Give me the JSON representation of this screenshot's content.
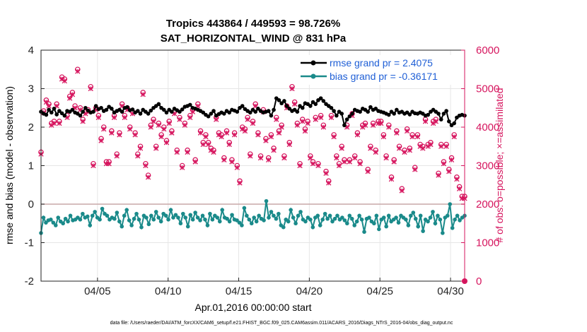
{
  "chart_data": {
    "type": "line",
    "title": "Tropics 443864 / 449593 = 98.726%",
    "subtitle": "SAT_HORIZONTAL_WIND @ 831 hPa",
    "xlabel": "Apr.01,2016 00:00:00 start",
    "ylabel_left": "rmse and bias (model - observation)",
    "ylabel_right": "# of obs: o=possible; ×=assimilated",
    "footer": "data file: /Users/raeder/DAI/ATM_forcXX/CAM6_setup/f.e21.FHIST_BGC.f09_025.CAM6assim.011/ACARS_2016/Diags_NTrS_2016-04/obs_diag_output.nc",
    "x_range": [
      1,
      31
    ],
    "x_ticks": [
      5,
      10,
      15,
      20,
      25,
      30
    ],
    "x_tick_labels": [
      "04/05",
      "04/10",
      "04/15",
      "04/20",
      "04/25",
      "04/30"
    ],
    "ylim_left": [
      -2,
      4
    ],
    "y_ticks_left": [
      -2,
      -1,
      0,
      1,
      2,
      3,
      4
    ],
    "y_tick_labels_left": [
      "-2",
      "-1",
      "0",
      "1",
      "2",
      "3",
      "4"
    ],
    "ylim_right": [
      0,
      6000
    ],
    "y_ticks_right": [
      0,
      1000,
      2000,
      3000,
      4000,
      5000,
      6000
    ],
    "y_tick_labels_right": [
      "0",
      "1000",
      "2000",
      "3000",
      "4000",
      "5000",
      "6000"
    ],
    "grid": true,
    "legend_position": "top-right",
    "colors": {
      "rmse": "#000000",
      "bias": "#1a8a8a",
      "obs": "#d6155e",
      "zero_line": "#c8a8a8",
      "legend_text": "#1f5fd6"
    },
    "series": [
      {
        "name": "rmse grand pr = 2.4075",
        "axis": "left",
        "values": [
          2.4,
          2.35,
          2.32,
          2.45,
          2.38,
          2.48,
          2.33,
          2.42,
          2.36,
          2.3,
          2.42,
          2.4,
          2.45,
          2.38,
          2.35,
          2.3,
          2.4,
          2.5,
          2.43,
          2.38,
          2.4,
          2.55,
          2.47,
          2.5,
          2.42,
          2.45,
          2.53,
          2.48,
          2.38,
          2.42,
          2.45,
          2.4,
          2.5,
          2.52,
          2.44,
          2.46,
          2.38,
          2.42,
          2.35,
          2.45,
          2.4,
          2.35,
          2.43,
          2.5,
          2.55,
          2.6,
          2.5,
          2.45,
          2.38,
          2.45,
          2.4,
          2.48,
          2.44,
          2.4,
          2.46,
          2.53,
          2.55,
          2.58,
          2.5,
          2.48,
          2.45,
          2.42,
          2.38,
          2.32,
          2.28,
          2.35,
          2.42,
          2.3,
          2.34,
          2.38,
          2.35,
          2.42,
          2.38,
          2.45,
          2.43,
          2.4,
          2.5,
          2.55,
          2.47,
          2.42,
          2.38,
          2.45,
          2.4,
          2.48,
          2.42,
          2.38,
          2.4,
          2.42,
          2.3,
          2.45,
          2.75,
          2.7,
          2.62,
          2.68,
          2.55,
          2.48,
          2.42,
          2.45,
          2.4,
          2.55,
          2.5,
          2.62,
          2.6,
          2.55,
          2.65,
          2.6,
          2.7,
          2.75,
          2.68,
          2.6,
          2.55,
          2.5,
          2.42,
          2.3,
          2.4,
          2.35,
          2.05,
          2.2,
          2.28,
          2.35,
          2.45,
          2.42,
          2.4,
          2.48,
          2.45,
          2.4,
          2.52,
          2.45,
          2.48,
          2.42,
          2.4,
          2.38,
          2.35,
          2.32,
          2.4,
          2.35,
          2.45,
          2.38,
          2.4,
          2.35,
          2.38,
          2.33,
          2.4,
          2.36,
          2.35,
          2.38,
          2.35,
          2.3,
          2.32,
          2.4,
          2.45,
          2.4,
          2.35,
          2.2,
          2.35,
          2.42,
          2.15,
          2.05,
          2.1,
          2.25,
          2.3,
          2.32,
          2.3
        ]
      },
      {
        "name": "bias grand pr = -0.36171",
        "axis": "left",
        "values": [
          -0.75,
          -0.35,
          -0.48,
          -0.42,
          -0.4,
          -0.48,
          -0.55,
          -0.35,
          -0.45,
          -0.5,
          -0.38,
          -0.45,
          -0.3,
          -0.42,
          -0.4,
          -0.35,
          -0.4,
          -0.25,
          -0.35,
          -0.32,
          -0.55,
          -0.3,
          -0.2,
          -0.35,
          -0.4,
          -0.12,
          -0.25,
          -0.3,
          -0.4,
          -0.35,
          -0.38,
          -0.22,
          -0.45,
          -0.58,
          -0.3,
          -0.15,
          -0.42,
          -0.55,
          -0.38,
          -0.25,
          -0.4,
          -0.6,
          -0.3,
          -0.35,
          -0.52,
          -0.3,
          -0.4,
          -0.2,
          -0.35,
          -0.45,
          -0.25,
          -0.3,
          -0.4,
          -0.15,
          -0.35,
          -0.28,
          -0.35,
          -0.5,
          -0.25,
          -0.35,
          -0.58,
          -0.28,
          -0.4,
          -0.22,
          -0.35,
          -0.42,
          -0.3,
          -0.4,
          -0.55,
          -0.25,
          -0.4,
          -0.3,
          -0.35,
          -0.45,
          -0.15,
          -0.35,
          -0.38,
          -0.45,
          -0.28,
          -0.4,
          -0.42,
          -0.48,
          -0.55,
          -0.1,
          -0.3,
          -0.4,
          -0.5,
          -0.35,
          -0.45,
          -0.3,
          -0.38,
          -0.42,
          0.08,
          -0.35,
          -0.2,
          -0.3,
          -0.38,
          -0.25,
          -0.55,
          -0.6,
          -0.4,
          -0.45,
          -0.15,
          -0.35,
          -0.5,
          -0.3,
          -0.2,
          -0.4,
          -0.45,
          -0.35,
          -0.4,
          -0.6,
          -0.35,
          -0.3,
          -0.55,
          -0.4,
          -0.25,
          -0.38,
          -0.3,
          -0.45,
          -0.38,
          -0.3,
          -0.4,
          -0.35,
          -0.42,
          -0.5,
          -0.3,
          -0.38,
          -0.55,
          -0.45,
          -0.3,
          -0.4,
          -0.72,
          -0.38,
          -0.35,
          -0.45,
          -0.5,
          -0.3,
          -0.65,
          -0.4,
          -0.35,
          -0.58,
          -0.3,
          -0.45,
          -0.4,
          -0.35,
          -0.48,
          -0.3,
          -0.35,
          -0.4,
          -0.55,
          -0.3,
          -0.22,
          -0.38,
          -0.58,
          -0.3,
          -0.7,
          -0.4,
          -0.45,
          -0.35,
          -0.2,
          -0.5,
          -0.3,
          -0.4,
          -0.75,
          -0.35,
          -0.3,
          0.0,
          -0.62,
          -0.4,
          -0.3,
          -0.42,
          -0.35,
          -0.3
        ]
      },
      {
        "name": "obs_possible",
        "axis": "right",
        "marker": "circle",
        "values": [
          3350,
          4420,
          4700,
          4600,
          4100,
          4150,
          4600,
          4150,
          5300,
          5250,
          4300,
          4800,
          4900,
          4550,
          5500,
          4500,
          4200,
          4400,
          4450,
          5050,
          3050,
          4500,
          4300,
          3700,
          4000,
          3100,
          3100,
          3900,
          4300,
          3300,
          3850,
          4600,
          4300,
          4500,
          4000,
          4400,
          3850,
          3300,
          3500,
          4900,
          3050,
          2750,
          4050,
          4200,
          3500,
          4100,
          3800,
          4000,
          3650,
          4150,
          3900,
          4400,
          3400,
          4250,
          3000,
          4100,
          3400,
          4300,
          4450,
          3150,
          4600,
          3900,
          3600,
          3800,
          3600,
          3450,
          3400,
          4250,
          3850,
          3800,
          3200,
          3900,
          3600,
          3150,
          3850,
          3000,
          2600,
          4000,
          3950,
          4250,
          3300,
          4150,
          4600,
          3850,
          3250,
          4450,
          3700,
          3200,
          3800,
          3450,
          4250,
          3900,
          4050,
          3250,
          4550,
          3600,
          5050,
          4650,
          4100,
          3050,
          4200,
          3950,
          4150,
          3250,
          3100,
          4250,
          3050,
          4300,
          4050,
          2850,
          2600,
          4300,
          3800,
          3250,
          3050,
          3500,
          3150,
          4050,
          3150,
          4350,
          3250,
          3850,
          3100,
          4050,
          4100,
          2900,
          3500,
          4100,
          3400,
          4150,
          4150,
          3800,
          3250,
          4050,
          2700,
          3150,
          3900,
          3500,
          2400,
          3400,
          3950,
          3450,
          3800,
          2950,
          3800,
          3550,
          3500,
          4200,
          3550,
          3600,
          4150,
          4200,
          2800,
          3550,
          3100,
          3550,
          2900,
          3200,
          3800,
          2700,
          2450,
          2200,
          2200
        ]
      },
      {
        "name": "obs_assimilated",
        "axis": "right",
        "marker": "x",
        "values": [
          3300,
          4380,
          4650,
          4550,
          4050,
          4100,
          4550,
          4100,
          5250,
          5200,
          4250,
          4750,
          4850,
          4500,
          5450,
          4450,
          4150,
          4350,
          4400,
          5000,
          3000,
          4450,
          4250,
          3650,
          3950,
          3050,
          3050,
          3850,
          4250,
          3250,
          3800,
          4550,
          4250,
          4450,
          3950,
          4350,
          3800,
          3250,
          3450,
          4850,
          3000,
          2700,
          4000,
          4150,
          3450,
          4050,
          3750,
          3950,
          3600,
          4100,
          3850,
          4350,
          3350,
          4200,
          2950,
          4050,
          3350,
          4250,
          4400,
          3100,
          4550,
          3850,
          3550,
          3750,
          3550,
          3400,
          3350,
          4200,
          3800,
          3750,
          3150,
          3850,
          3550,
          3100,
          3800,
          2950,
          2550,
          3950,
          3900,
          4200,
          3250,
          4100,
          4550,
          3800,
          3200,
          4400,
          3650,
          3150,
          3750,
          3400,
          4200,
          3850,
          4000,
          3200,
          4500,
          3550,
          5000,
          4600,
          4050,
          3000,
          4150,
          3900,
          4100,
          3200,
          3050,
          4200,
          3000,
          4250,
          4000,
          2800,
          2550,
          4250,
          3750,
          3200,
          3000,
          3450,
          3100,
          4000,
          3100,
          4300,
          3200,
          3800,
          3050,
          4000,
          4050,
          2850,
          3450,
          4050,
          3350,
          4100,
          4100,
          3750,
          3200,
          4000,
          2650,
          3100,
          3850,
          3450,
          2350,
          3350,
          3900,
          3400,
          3750,
          2900,
          3750,
          3500,
          3450,
          4150,
          3500,
          3550,
          4100,
          4150,
          2750,
          3500,
          3050,
          3500,
          2850,
          3150,
          3750,
          2650,
          2400,
          2150,
          2150
        ]
      }
    ]
  }
}
